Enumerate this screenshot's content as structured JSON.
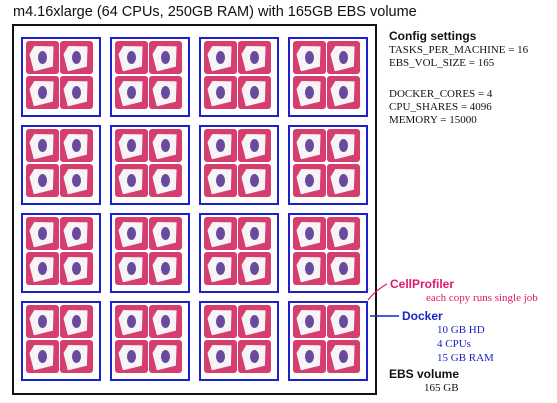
{
  "title": "m4.16xlarge (64 CPUs, 250GB RAM) with 165GB EBS volume",
  "config": {
    "heading": "Config settings",
    "lines": [
      "TASKS_PER_MACHINE = 16",
      "EBS_VOL_SIZE = 165",
      "",
      "DOCKER_CORES = 4",
      "CPU_SHARES = 4096",
      "MEMORY = 15000"
    ]
  },
  "legend": {
    "cellprofiler_label": "CellProfiler",
    "cellprofiler_note": "each copy runs single job",
    "docker_label": "Docker",
    "docker_specs": [
      "10 GB HD",
      "4 CPUs",
      "15 GB RAM"
    ],
    "ebs_label": "EBS volume",
    "ebs_size": "165 GB"
  },
  "grid": {
    "docker_rows": 4,
    "docker_cols": 4,
    "tiles_per_docker": 4
  },
  "colors": {
    "frame": "#111111",
    "docker": "#1a22c8",
    "cellprofiler_tile": "#d63e70",
    "cellprofiler_text": "#e0176b",
    "docker_text": "#1a22c8"
  },
  "icons": {
    "cellprofiler": "cellprofiler-logo-icon"
  }
}
